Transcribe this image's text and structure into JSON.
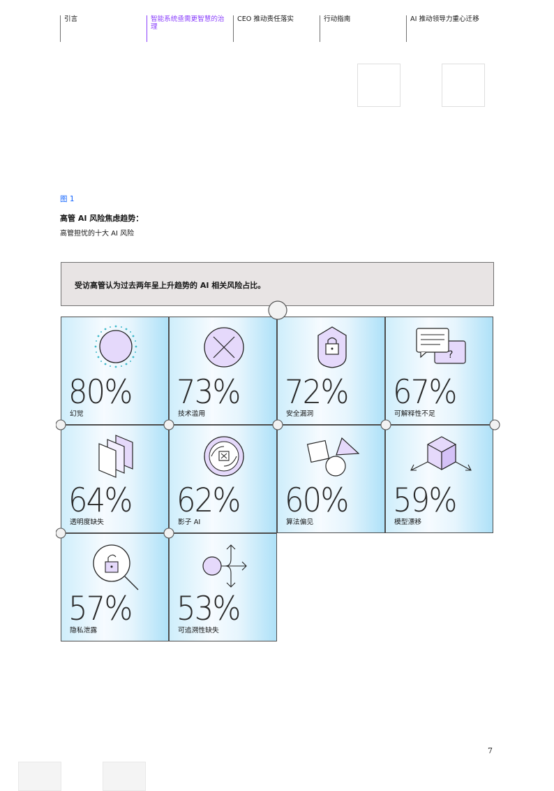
{
  "nav": {
    "items": [
      {
        "label": "引言",
        "active": false
      },
      {
        "label": "智能系统亟需更智慧的治理",
        "active": true
      },
      {
        "label": "CEO 推动责任落实",
        "active": false
      },
      {
        "label": "行动指南",
        "active": false
      },
      {
        "label": "AI 推动领导力重心迁移",
        "active": false
      }
    ]
  },
  "figure": {
    "label": "图 1",
    "title": "高管 AI 风险焦虑趋势：",
    "subtitle": "高管担忧的十大 AI 风险",
    "banner": "受访高管认为过去两年呈上升趋势的 AI 相关风险占比。"
  },
  "risks": [
    {
      "percent": "80%",
      "label": "幻觉",
      "icon": "sun-dots-icon"
    },
    {
      "percent": "73%",
      "label": "技术滥用",
      "icon": "x-circle-icon"
    },
    {
      "percent": "72%",
      "label": "安全漏洞",
      "icon": "shield-lock-icon"
    },
    {
      "percent": "67%",
      "label": "可解释性不足",
      "icon": "chat-question-icon"
    },
    {
      "percent": "64%",
      "label": "透明度缺失",
      "icon": "layered-pages-icon"
    },
    {
      "percent": "62%",
      "label": "影子 AI",
      "icon": "hidden-box-icon"
    },
    {
      "percent": "60%",
      "label": "算法偏见",
      "icon": "shapes-icon"
    },
    {
      "percent": "59%",
      "label": "模型漂移",
      "icon": "cube-arrows-icon"
    },
    {
      "percent": "57%",
      "label": "隐私泄露",
      "icon": "magnifier-unlock-icon"
    },
    {
      "percent": "53%",
      "label": "可追溯性缺失",
      "icon": "branching-arrows-icon"
    }
  ],
  "page_number": "7",
  "colors": {
    "accent": "#8a3ffc",
    "link": "#0f62fe",
    "banner": "#e8e4e4",
    "icon_fill": "#e5d9fb"
  }
}
